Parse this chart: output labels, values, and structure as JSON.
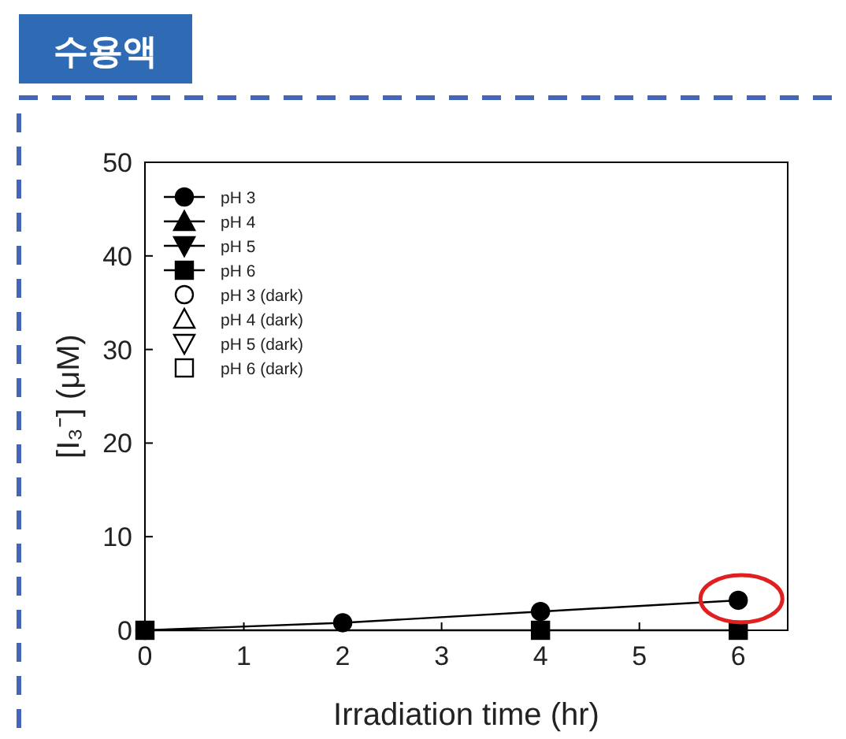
{
  "chart_data": {
    "type": "line",
    "title": "수용액",
    "xlabel": "Irradiation time (hr)",
    "ylabel": "[I₃⁻] (μM)",
    "x": [
      0,
      2,
      4,
      6
    ],
    "xlim": [
      0,
      6.5
    ],
    "xticks": [
      0,
      1,
      2,
      3,
      4,
      5,
      6
    ],
    "ylim": [
      0,
      50
    ],
    "yticks": [
      0,
      10,
      20,
      30,
      40,
      50
    ],
    "grid": false,
    "legend": "top left",
    "series": [
      {
        "name": "pH 3",
        "color": "#000000",
        "marker": "circle",
        "line_style": "solid",
        "values": [
          0,
          0.8,
          2.0,
          3.2
        ]
      },
      {
        "name": "pH 4",
        "color": "#000000",
        "marker": "triangle",
        "line_style": "solid",
        "values": [
          null,
          null,
          null,
          null
        ]
      },
      {
        "name": "pH 5",
        "color": "#000000",
        "marker": "triangle-down",
        "line_style": "solid",
        "values": [
          null,
          null,
          null,
          null
        ]
      },
      {
        "name": "pH 6",
        "color": "#000000",
        "marker": "square",
        "line_style": "solid",
        "values": [
          0,
          null,
          0,
          0
        ]
      },
      {
        "name": "pH 3 (dark)",
        "color": "#000000",
        "marker": "circle",
        "line_style": "none",
        "values": [
          null,
          null,
          null,
          null
        ]
      },
      {
        "name": "pH 4 (dark)",
        "color": "#000000",
        "marker": "triangle",
        "line_style": "none",
        "values": [
          null,
          null,
          null,
          null
        ]
      },
      {
        "name": "pH 5 (dark)",
        "color": "#000000",
        "marker": "triangle-down",
        "line_style": "none",
        "values": [
          null,
          null,
          null,
          null
        ]
      },
      {
        "name": "pH 6 (dark)",
        "color": "#000000",
        "marker": "square",
        "line_style": "none",
        "values": [
          null,
          null,
          null,
          null
        ]
      }
    ]
  }
}
